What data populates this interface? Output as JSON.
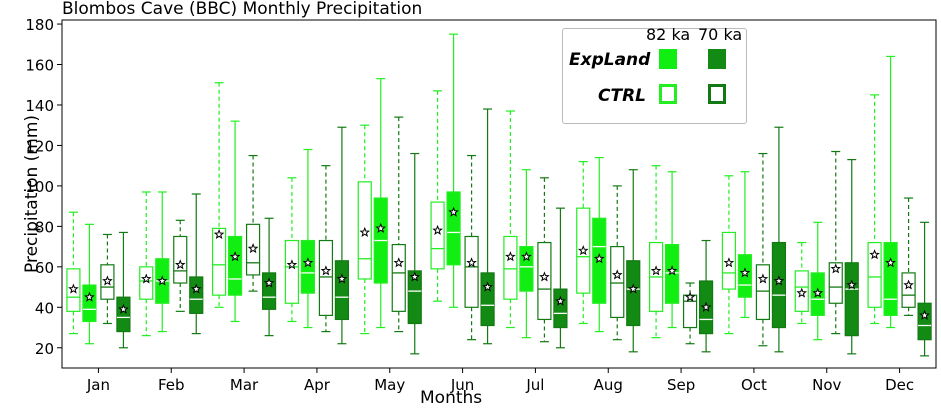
{
  "chart_data": {
    "type": "box",
    "title": "Blombos Cave (BBC) Monthly Precipitation",
    "xlabel": "Months",
    "ylabel": "Precipitation (mm)",
    "ylim": [
      10,
      182
    ],
    "yticks": [
      20,
      40,
      60,
      80,
      100,
      120,
      140,
      160,
      180
    ],
    "categories": [
      "Jan",
      "Feb",
      "Mar",
      "Apr",
      "May",
      "Jun",
      "Jul",
      "Aug",
      "Sep",
      "Oct",
      "Nov",
      "Dec"
    ],
    "legend": {
      "column_headers": [
        "82 ka",
        "70 ka"
      ],
      "rows": [
        "ExpLand",
        "CTRL"
      ]
    },
    "colors": {
      "light": "#22ee22",
      "dark": "#137a13",
      "lightFill": "#11ee11",
      "darkFill": "#138a13"
    },
    "series": [
      {
        "name": "CTRL 82 ka",
        "style": "outline",
        "color": "light",
        "stats": [
          {
            "min": 27,
            "q1": 38,
            "med": 45,
            "q3": 59,
            "max": 87,
            "mean": 49
          },
          {
            "min": 26,
            "q1": 44,
            "med": 53,
            "q3": 60,
            "max": 97,
            "mean": 54
          },
          {
            "min": 40,
            "q1": 46,
            "med": 61,
            "q3": 79,
            "max": 151,
            "mean": 76
          },
          {
            "min": 33,
            "q1": 42,
            "med": 60,
            "q3": 73,
            "max": 104,
            "mean": 61
          },
          {
            "min": 27,
            "q1": 54,
            "med": 64,
            "q3": 102,
            "max": 130,
            "mean": 77
          },
          {
            "min": 43,
            "q1": 59,
            "med": 69,
            "q3": 92,
            "max": 147,
            "mean": 78
          },
          {
            "min": 30,
            "q1": 44,
            "med": 59,
            "q3": 75,
            "max": 137,
            "mean": 65
          },
          {
            "min": 32,
            "q1": 47,
            "med": 65,
            "q3": 89,
            "max": 112,
            "mean": 68
          },
          {
            "min": 25,
            "q1": 38,
            "med": 55,
            "q3": 72,
            "max": 110,
            "mean": 58
          },
          {
            "min": 27,
            "q1": 49,
            "med": 57,
            "q3": 77,
            "max": 105,
            "mean": 62
          },
          {
            "min": 32,
            "q1": 38,
            "med": 50,
            "q3": 58,
            "max": 72,
            "mean": 47
          },
          {
            "min": 32,
            "q1": 40,
            "med": 55,
            "q3": 72,
            "max": 145,
            "mean": 66
          }
        ]
      },
      {
        "name": "ExpLand 82 ka",
        "style": "filled",
        "color": "light",
        "stats": [
          {
            "min": 22,
            "q1": 33,
            "med": 39,
            "q3": 51,
            "max": 81,
            "mean": 45
          },
          {
            "min": 28,
            "q1": 42,
            "med": 53,
            "q3": 64,
            "max": 97,
            "mean": 53
          },
          {
            "min": 33,
            "q1": 46,
            "med": 54,
            "q3": 75,
            "max": 132,
            "mean": 65
          },
          {
            "min": 30,
            "q1": 47,
            "med": 57,
            "q3": 73,
            "max": 118,
            "mean": 62
          },
          {
            "min": 30,
            "q1": 52,
            "med": 73,
            "q3": 94,
            "max": 153,
            "mean": 79
          },
          {
            "min": 40,
            "q1": 61,
            "med": 77,
            "q3": 97,
            "max": 175,
            "mean": 87
          },
          {
            "min": 25,
            "q1": 48,
            "med": 60,
            "q3": 70,
            "max": 108,
            "mean": 65
          },
          {
            "min": 28,
            "q1": 42,
            "med": 70,
            "q3": 84,
            "max": 114,
            "mean": 64
          },
          {
            "min": 30,
            "q1": 42,
            "med": 57,
            "q3": 71,
            "max": 107,
            "mean": 58
          },
          {
            "min": 35,
            "q1": 45,
            "med": 51,
            "q3": 66,
            "max": 107,
            "mean": 57
          },
          {
            "min": 24,
            "q1": 36,
            "med": 44,
            "q3": 57,
            "max": 82,
            "mean": 47
          },
          {
            "min": 30,
            "q1": 36,
            "med": 44,
            "q3": 72,
            "max": 164,
            "mean": 62
          }
        ]
      },
      {
        "name": "CTRL 70 ka",
        "style": "outline",
        "color": "dark",
        "stats": [
          {
            "min": 32,
            "q1": 44,
            "med": 50,
            "q3": 61,
            "max": 76,
            "mean": 53
          },
          {
            "min": 38,
            "q1": 52,
            "med": 58,
            "q3": 75,
            "max": 83,
            "mean": 61
          },
          {
            "min": 48,
            "q1": 56,
            "med": 62,
            "q3": 81,
            "max": 115,
            "mean": 69
          },
          {
            "min": 28,
            "q1": 36,
            "med": 55,
            "q3": 73,
            "max": 110,
            "mean": 58
          },
          {
            "min": 28,
            "q1": 38,
            "med": 57,
            "q3": 71,
            "max": 134,
            "mean": 62
          },
          {
            "min": 24,
            "q1": 40,
            "med": 60,
            "q3": 75,
            "max": 115,
            "mean": 62
          },
          {
            "min": 23,
            "q1": 34,
            "med": 49,
            "q3": 72,
            "max": 104,
            "mean": 55
          },
          {
            "min": 24,
            "q1": 35,
            "med": 52,
            "q3": 70,
            "max": 100,
            "mean": 56
          },
          {
            "min": 22,
            "q1": 30,
            "med": 43,
            "q3": 46,
            "max": 52,
            "mean": 45
          },
          {
            "min": 21,
            "q1": 34,
            "med": 48,
            "q3": 61,
            "max": 116,
            "mean": 54
          },
          {
            "min": 27,
            "q1": 42,
            "med": 50,
            "q3": 62,
            "max": 117,
            "mean": 59
          },
          {
            "min": 36,
            "q1": 40,
            "med": 46,
            "q3": 57,
            "max": 94,
            "mean": 51
          }
        ]
      },
      {
        "name": "ExpLand 70 ka",
        "style": "filled",
        "color": "dark",
        "stats": [
          {
            "min": 20,
            "q1": 28,
            "med": 35,
            "q3": 45,
            "max": 77,
            "mean": 39
          },
          {
            "min": 27,
            "q1": 37,
            "med": 44,
            "q3": 55,
            "max": 96,
            "mean": 49
          },
          {
            "min": 26,
            "q1": 39,
            "med": 45,
            "q3": 57,
            "max": 84,
            "mean": 52
          },
          {
            "min": 22,
            "q1": 34,
            "med": 45,
            "q3": 63,
            "max": 129,
            "mean": 54
          },
          {
            "min": 17,
            "q1": 32,
            "med": 48,
            "q3": 58,
            "max": 116,
            "mean": 55
          },
          {
            "min": 22,
            "q1": 31,
            "med": 41,
            "q3": 57,
            "max": 138,
            "mean": 50
          },
          {
            "min": 20,
            "q1": 30,
            "med": 37,
            "q3": 49,
            "max": 89,
            "mean": 43
          },
          {
            "min": 18,
            "q1": 31,
            "med": 49,
            "q3": 63,
            "max": 108,
            "mean": 49
          },
          {
            "min": 18,
            "q1": 27,
            "med": 34,
            "q3": 53,
            "max": 73,
            "mean": 40
          },
          {
            "min": 18,
            "q1": 30,
            "med": 46,
            "q3": 72,
            "max": 129,
            "mean": 53
          },
          {
            "min": 17,
            "q1": 26,
            "med": 49,
            "q3": 62,
            "max": 113,
            "mean": 51
          },
          {
            "min": 16,
            "q1": 24,
            "med": 31,
            "q3": 42,
            "max": 82,
            "mean": 36
          }
        ]
      }
    ]
  }
}
